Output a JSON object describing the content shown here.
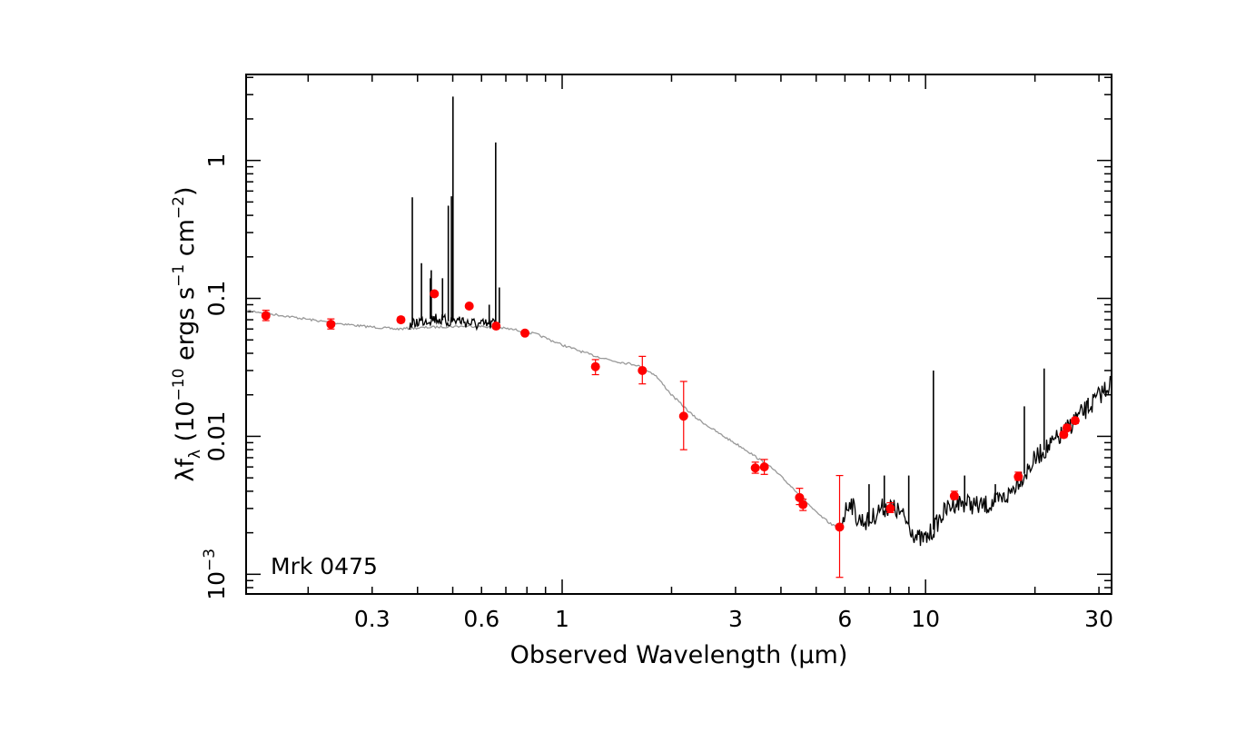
{
  "chart_data": {
    "type": "scatter",
    "xlabel": "Observed Wavelength (μm)",
    "ylabel": {
      "prefix": "λf",
      "sub": "λ",
      "open": " (10",
      "exp1": "−10",
      "mid1": " ergs s",
      "exp2": "−1",
      "mid2": " cm",
      "exp3": "−2",
      "close": ")"
    },
    "object_label": "Mrk 0475",
    "x_scale": "log",
    "y_scale": "log",
    "xlim": [
      0.135,
      32.5
    ],
    "ylim": [
      0.00072,
      4.2
    ],
    "x_tick_labels": [
      {
        "v": 0.3,
        "label": "0.3"
      },
      {
        "v": 0.6,
        "label": "0.6"
      },
      {
        "v": 1,
        "label": "1"
      },
      {
        "v": 3,
        "label": "3"
      },
      {
        "v": 6,
        "label": "6"
      },
      {
        "v": 10,
        "label": "10"
      },
      {
        "v": 30,
        "label": "30"
      }
    ],
    "y_tick_labels": [
      {
        "v": 1,
        "label": "1"
      },
      {
        "v": 0.1,
        "label": "0.1"
      },
      {
        "v": 0.01,
        "label": "0.01"
      },
      {
        "v": 0.001,
        "label": "10",
        "exp": "−3"
      }
    ],
    "colors": {
      "points": "#ff0000",
      "model": "#999999",
      "spectrum": "#000000",
      "axis": "#000000"
    },
    "photometry": [
      {
        "x": 0.153,
        "y": 0.075,
        "lo": 0.069,
        "hi": 0.082
      },
      {
        "x": 0.231,
        "y": 0.065,
        "lo": 0.06,
        "hi": 0.071
      },
      {
        "x": 0.36,
        "y": 0.07,
        "lo": 0.067,
        "hi": 0.073
      },
      {
        "x": 0.445,
        "y": 0.108,
        "lo": 0.104,
        "hi": 0.112
      },
      {
        "x": 0.555,
        "y": 0.088,
        "lo": 0.085,
        "hi": 0.091
      },
      {
        "x": 0.658,
        "y": 0.063,
        "lo": 0.061,
        "hi": 0.065
      },
      {
        "x": 0.79,
        "y": 0.056,
        "lo": 0.054,
        "hi": 0.058
      },
      {
        "x": 1.235,
        "y": 0.032,
        "lo": 0.028,
        "hi": 0.036
      },
      {
        "x": 1.662,
        "y": 0.03,
        "lo": 0.024,
        "hi": 0.038
      },
      {
        "x": 2.159,
        "y": 0.014,
        "lo": 0.008,
        "hi": 0.025
      },
      {
        "x": 3.4,
        "y": 0.0059,
        "lo": 0.0054,
        "hi": 0.0065
      },
      {
        "x": 3.6,
        "y": 0.006,
        "lo": 0.0053,
        "hi": 0.0068
      },
      {
        "x": 4.5,
        "y": 0.0036,
        "lo": 0.0032,
        "hi": 0.0042
      },
      {
        "x": 4.6,
        "y": 0.0032,
        "lo": 0.0029,
        "hi": 0.0035
      },
      {
        "x": 5.8,
        "y": 0.0022,
        "lo": 0.00095,
        "hi": 0.0052
      },
      {
        "x": 8.0,
        "y": 0.003,
        "lo": 0.0028,
        "hi": 0.0033
      },
      {
        "x": 12.0,
        "y": 0.0037,
        "lo": 0.0035,
        "hi": 0.004
      },
      {
        "x": 18.0,
        "y": 0.0051,
        "lo": 0.0048,
        "hi": 0.0055
      },
      {
        "x": 24.0,
        "y": 0.0103,
        "lo": 0.0098,
        "hi": 0.0108
      },
      {
        "x": 24.5,
        "y": 0.0115,
        "lo": 0.011,
        "hi": 0.0121
      },
      {
        "x": 25.8,
        "y": 0.013,
        "lo": 0.0124,
        "hi": 0.0136
      }
    ],
    "model_curve": [
      [
        0.135,
        0.082
      ],
      [
        0.17,
        0.075
      ],
      [
        0.22,
        0.068
      ],
      [
        0.28,
        0.063
      ],
      [
        0.35,
        0.06
      ],
      [
        0.45,
        0.062
      ],
      [
        0.55,
        0.063
      ],
      [
        0.65,
        0.062
      ],
      [
        0.75,
        0.059
      ],
      [
        0.85,
        0.055
      ],
      [
        1.0,
        0.046
      ],
      [
        1.2,
        0.039
      ],
      [
        1.4,
        0.035
      ],
      [
        1.6,
        0.033
      ],
      [
        1.8,
        0.028
      ],
      [
        2.0,
        0.02
      ],
      [
        2.3,
        0.014
      ],
      [
        2.7,
        0.0105
      ],
      [
        3.2,
        0.008
      ],
      [
        3.8,
        0.0058
      ],
      [
        4.5,
        0.0038
      ],
      [
        5.0,
        0.0028
      ],
      [
        5.5,
        0.0023
      ],
      [
        5.8,
        0.0022
      ]
    ],
    "optical_spectrum_continuum": [
      [
        0.38,
        0.062
      ],
      [
        0.4,
        0.068
      ],
      [
        0.42,
        0.07
      ],
      [
        0.45,
        0.072
      ],
      [
        0.48,
        0.068
      ],
      [
        0.52,
        0.07
      ],
      [
        0.56,
        0.066
      ],
      [
        0.6,
        0.064
      ],
      [
        0.66,
        0.066
      ]
    ],
    "optical_emission_lines": [
      {
        "x": 0.387,
        "y": 0.54
      },
      {
        "x": 0.4101,
        "y": 0.18
      },
      {
        "x": 0.434,
        "y": 0.14
      },
      {
        "x": 0.4363,
        "y": 0.16
      },
      {
        "x": 0.4686,
        "y": 0.14
      },
      {
        "x": 0.4861,
        "y": 0.47
      },
      {
        "x": 0.4959,
        "y": 0.55
      },
      {
        "x": 0.5007,
        "y": 2.9
      },
      {
        "x": 0.63,
        "y": 0.09
      },
      {
        "x": 0.6563,
        "y": 1.35
      },
      {
        "x": 0.6717,
        "y": 0.12
      }
    ],
    "ir_spectrum_continuum": [
      [
        5.8,
        0.0022
      ],
      [
        6.0,
        0.0028
      ],
      [
        6.2,
        0.0035
      ],
      [
        6.5,
        0.0025
      ],
      [
        7.0,
        0.0024
      ],
      [
        7.5,
        0.003
      ],
      [
        8.0,
        0.0031
      ],
      [
        8.5,
        0.0028
      ],
      [
        9.0,
        0.0023
      ],
      [
        9.5,
        0.0018
      ],
      [
        10.0,
        0.0018
      ],
      [
        10.5,
        0.0021
      ],
      [
        11.0,
        0.0026
      ],
      [
        11.5,
        0.003
      ],
      [
        12.0,
        0.0033
      ],
      [
        13.0,
        0.0033
      ],
      [
        14.0,
        0.0031
      ],
      [
        15.0,
        0.0032
      ],
      [
        16.0,
        0.0034
      ],
      [
        17.0,
        0.0038
      ],
      [
        18.0,
        0.0048
      ],
      [
        19.0,
        0.0056
      ],
      [
        20.0,
        0.0068
      ],
      [
        21.0,
        0.0078
      ],
      [
        22.0,
        0.0085
      ],
      [
        23.0,
        0.0095
      ],
      [
        24.0,
        0.0105
      ],
      [
        25.0,
        0.012
      ],
      [
        26.0,
        0.0135
      ],
      [
        28.0,
        0.016
      ],
      [
        30.0,
        0.0195
      ],
      [
        32.5,
        0.025
      ]
    ],
    "ir_emission_lines": [
      {
        "x": 6.99,
        "y": 0.0045
      },
      {
        "x": 7.7,
        "y": 0.0052
      },
      {
        "x": 8.99,
        "y": 0.0052
      },
      {
        "x": 10.51,
        "y": 0.03
      },
      {
        "x": 12.81,
        "y": 0.0052
      },
      {
        "x": 15.56,
        "y": 0.0045
      },
      {
        "x": 18.7,
        "y": 0.0165
      },
      {
        "x": 21.2,
        "y": 0.031
      },
      {
        "x": 25.9,
        "y": 0.015
      },
      {
        "x": 28.0,
        "y": 0.019
      }
    ]
  }
}
